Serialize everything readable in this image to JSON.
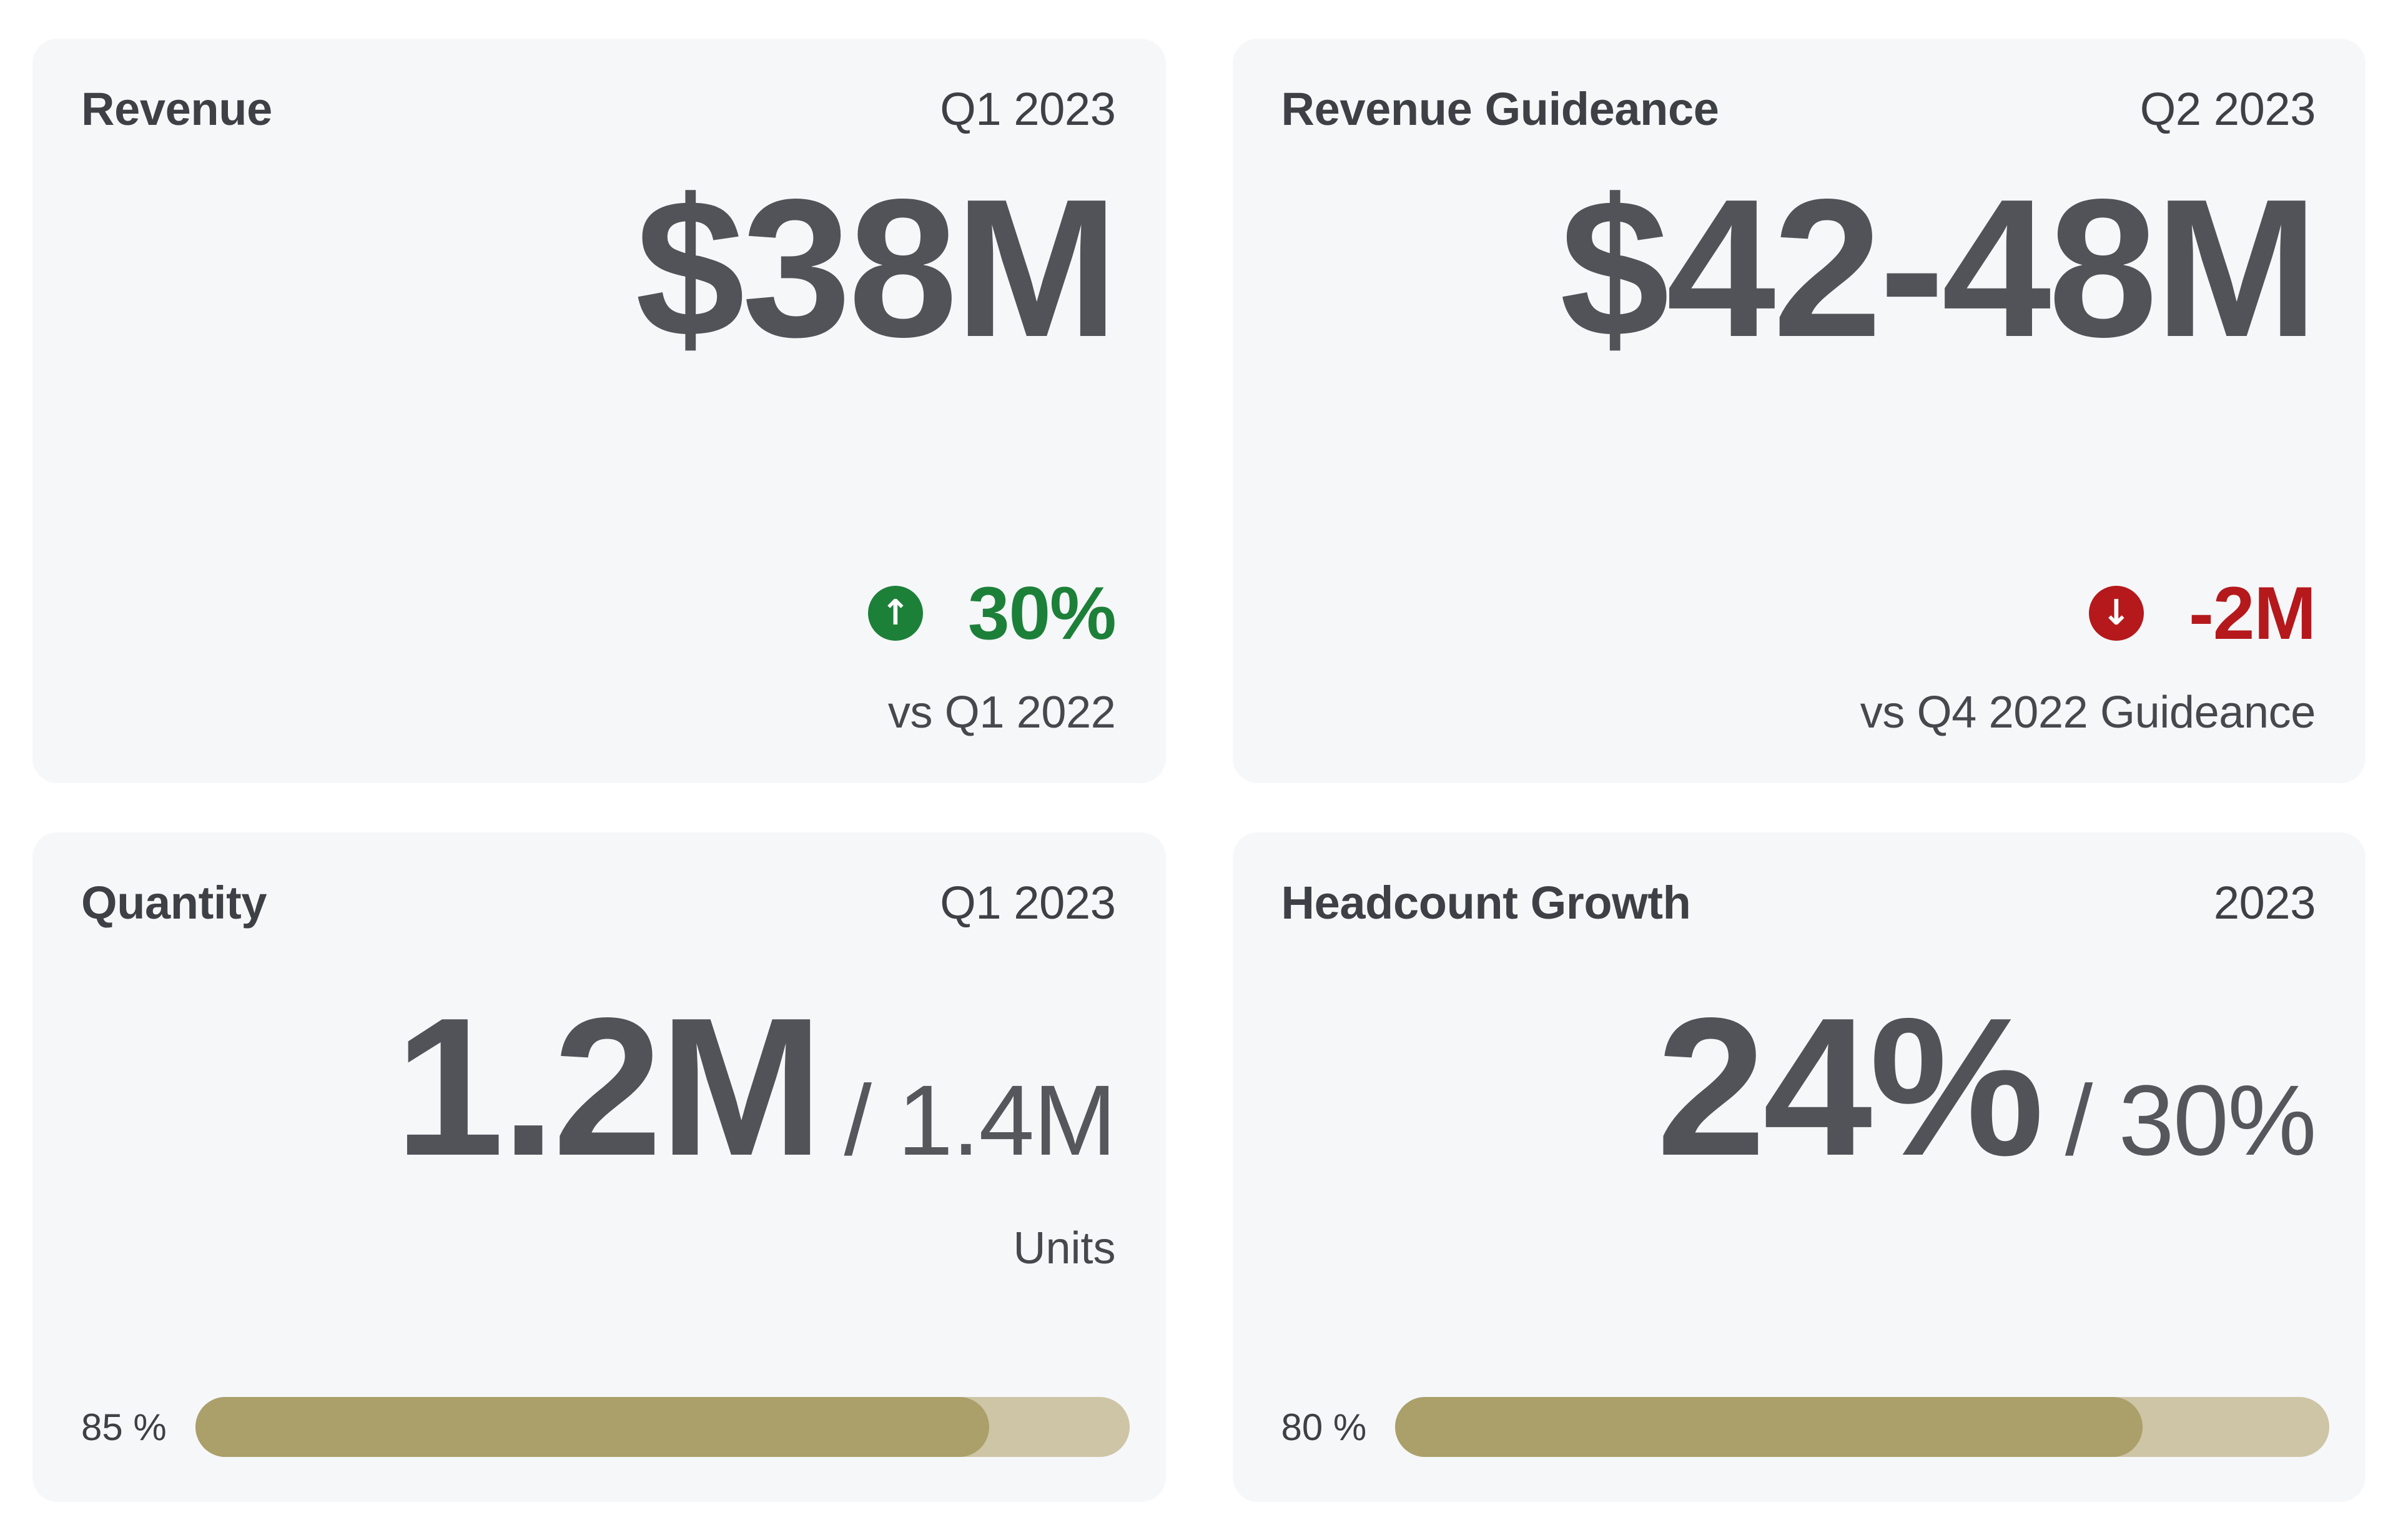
{
  "colors": {
    "page-bg": "#ffffff",
    "card-bg": "#f6f7f9",
    "text-title": "#3d4045",
    "text-value": "#515359",
    "text-target": "#55575d",
    "text-muted": "#46484d",
    "positive": "#1d8039",
    "negative": "#b5191c",
    "progress-fill": "#ab9f6a",
    "progress-track": "#cdc5a5"
  },
  "cards": [
    {
      "title": "Revenue",
      "period": "Q1 2023",
      "value": "$38M",
      "delta": {
        "direction": "up",
        "icon": "↑",
        "value": "30%"
      },
      "comparison": "vs Q1 2022"
    },
    {
      "title": "Revenue Guideance",
      "period": "Q2 2023",
      "value": "$42-48M",
      "delta": {
        "direction": "down",
        "icon": "↓",
        "value": "-2M"
      },
      "comparison": "vs Q4 2022 Guideance"
    },
    {
      "title": "Quantity",
      "period": "Q1 2023",
      "value": "1.2M",
      "target": "/ 1.4M",
      "unit_label": "Units",
      "progress": {
        "label": "85 %",
        "percent": "85%"
      }
    },
    {
      "title": "Headcount Growth",
      "period": "2023",
      "value": "24%",
      "target": "/ 30%",
      "unit_label": "",
      "progress": {
        "label": "80 %",
        "percent": "80%"
      }
    }
  ]
}
